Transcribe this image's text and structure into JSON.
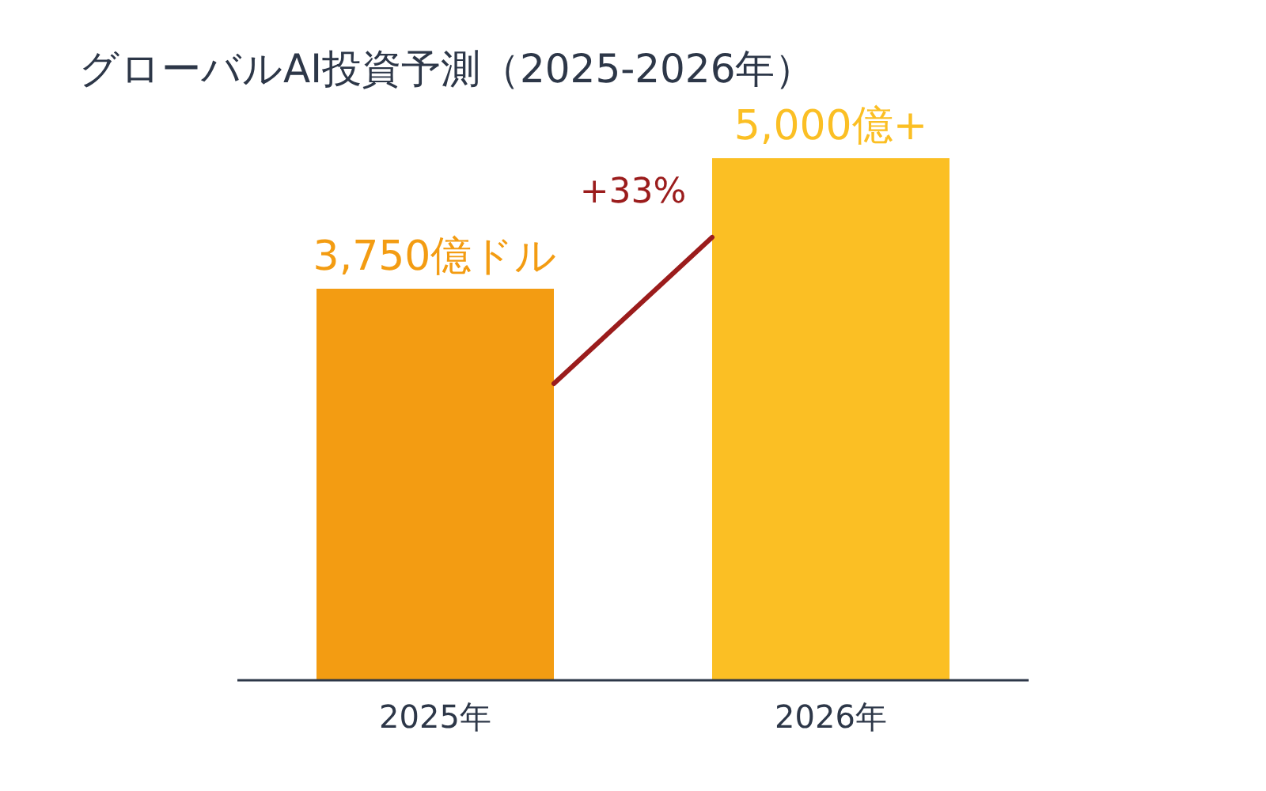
{
  "chart_data": {
    "type": "bar",
    "title": "グローバルAI投資予測（2025-2026年）",
    "categories": [
      "2025年",
      "2026年"
    ],
    "values": [
      3750,
      5000
    ],
    "colors": [
      "#f39c12",
      "#fbbf24"
    ],
    "value_labels": [
      "3,750億ドル",
      "5,000億+"
    ],
    "annotations": [
      "+33%"
    ]
  }
}
